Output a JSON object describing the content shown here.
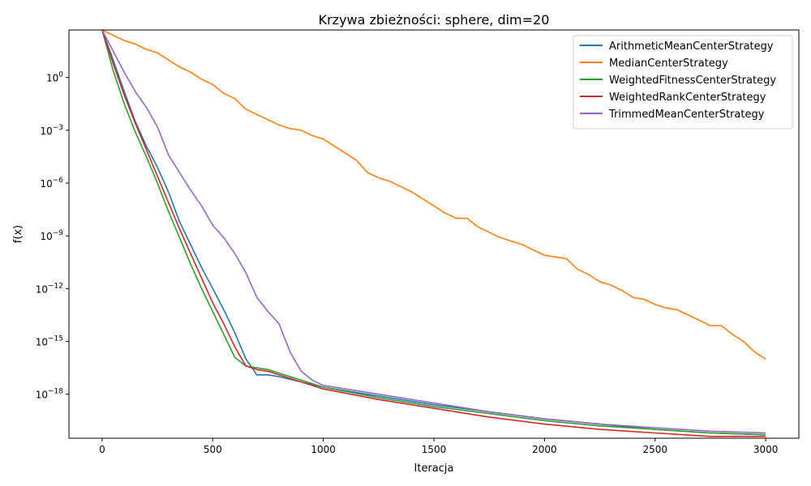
{
  "chart_data": {
    "type": "line",
    "title": "Krzywa zbieżności: sphere, dim=20",
    "xlabel": "Iteracja",
    "ylabel": "f(x)",
    "xlim": [
      -150,
      3150
    ],
    "xticks": [
      0,
      500,
      1000,
      1500,
      2000,
      2500,
      3000
    ],
    "yscale": "log",
    "ylim_log10": [
      -20.5,
      2.7
    ],
    "yticks": [
      {
        "exp": 0,
        "label": "10",
        "sup": "0"
      },
      {
        "exp": -3,
        "label": "10",
        "sup": "−3"
      },
      {
        "exp": -6,
        "label": "10",
        "sup": "−6"
      },
      {
        "exp": -9,
        "label": "10",
        "sup": "−9"
      },
      {
        "exp": -12,
        "label": "10",
        "sup": "−12"
      },
      {
        "exp": -15,
        "label": "10",
        "sup": "−15"
      },
      {
        "exp": -18,
        "label": "10",
        "sup": "−18"
      }
    ],
    "grid": false,
    "legend_position": "top-right",
    "series": [
      {
        "name": "ArithmeticMeanCenterStrategy",
        "color": "#1f77b4",
        "x": [
          0,
          50,
          100,
          150,
          200,
          250,
          300,
          350,
          400,
          450,
          500,
          550,
          600,
          650,
          700,
          750,
          800,
          900,
          1000,
          1250,
          1500,
          1750,
          2000,
          2250,
          2500,
          2750,
          3000
        ],
        "log10_y": [
          2.7,
          1.0,
          -0.8,
          -2.5,
          -3.9,
          -5.1,
          -6.5,
          -8.2,
          -9.5,
          -10.8,
          -12.0,
          -13.2,
          -14.5,
          -16.0,
          -16.9,
          -16.9,
          -17.0,
          -17.3,
          -17.6,
          -18.1,
          -18.6,
          -19.0,
          -19.4,
          -19.7,
          -20.0,
          -20.2,
          -20.3
        ]
      },
      {
        "name": "MedianCenterStrategy",
        "color": "#ff7f0e",
        "x": [
          0,
          50,
          100,
          150,
          200,
          250,
          300,
          350,
          400,
          450,
          500,
          550,
          600,
          650,
          700,
          750,
          800,
          850,
          900,
          950,
          1000,
          1050,
          1100,
          1150,
          1200,
          1250,
          1300,
          1350,
          1400,
          1450,
          1500,
          1550,
          1600,
          1650,
          1700,
          1750,
          1800,
          1850,
          1900,
          1950,
          2000,
          2050,
          2100,
          2150,
          2200,
          2250,
          2300,
          2350,
          2400,
          2450,
          2500,
          2550,
          2600,
          2650,
          2700,
          2750,
          2800,
          2850,
          2900,
          2950,
          3000
        ],
        "log10_y": [
          2.7,
          2.4,
          2.1,
          1.9,
          1.6,
          1.4,
          1.0,
          0.6,
          0.3,
          -0.1,
          -0.4,
          -0.9,
          -1.2,
          -1.8,
          -2.1,
          -2.4,
          -2.7,
          -2.9,
          -3.0,
          -3.3,
          -3.5,
          -3.9,
          -4.3,
          -4.7,
          -5.4,
          -5.7,
          -5.9,
          -6.2,
          -6.5,
          -6.9,
          -7.3,
          -7.7,
          -8.0,
          -8.0,
          -8.5,
          -8.8,
          -9.1,
          -9.3,
          -9.5,
          -9.8,
          -10.1,
          -10.2,
          -10.3,
          -10.9,
          -11.2,
          -11.6,
          -11.8,
          -12.1,
          -12.5,
          -12.6,
          -12.9,
          -13.1,
          -13.2,
          -13.5,
          -13.8,
          -14.1,
          -14.1,
          -14.6,
          -15.0,
          -15.6,
          -16.0
        ]
      },
      {
        "name": "WeightedFitnessCenterStrategy",
        "color": "#2ca02c",
        "x": [
          0,
          50,
          100,
          150,
          200,
          250,
          300,
          350,
          400,
          450,
          500,
          550,
          600,
          650,
          700,
          750,
          800,
          900,
          1000,
          1250,
          1500,
          1750,
          2000,
          2250,
          2500,
          2750,
          3000
        ],
        "log10_y": [
          2.7,
          0.4,
          -1.5,
          -3.1,
          -4.5,
          -6.0,
          -7.6,
          -9.1,
          -10.6,
          -12.0,
          -13.3,
          -14.6,
          -15.9,
          -16.4,
          -16.5,
          -16.6,
          -16.8,
          -17.2,
          -17.6,
          -18.2,
          -18.7,
          -19.1,
          -19.5,
          -19.8,
          -20.0,
          -20.2,
          -20.3
        ]
      },
      {
        "name": "WeightedRankCenterStrategy",
        "color": "#d62728",
        "x": [
          0,
          50,
          100,
          150,
          200,
          250,
          300,
          350,
          400,
          450,
          500,
          550,
          600,
          650,
          700,
          750,
          800,
          900,
          1000,
          1250,
          1500,
          1750,
          2000,
          2250,
          2500,
          2750,
          3000
        ],
        "log10_y": [
          2.7,
          0.8,
          -1.0,
          -2.6,
          -4.1,
          -5.6,
          -7.1,
          -8.6,
          -10.0,
          -11.4,
          -12.8,
          -14.0,
          -15.3,
          -16.4,
          -16.6,
          -16.7,
          -16.9,
          -17.3,
          -17.7,
          -18.3,
          -18.8,
          -19.3,
          -19.7,
          -20.0,
          -20.2,
          -20.4,
          -20.4
        ]
      },
      {
        "name": "TrimmedMeanCenterStrategy",
        "color": "#9467bd",
        "x": [
          0,
          50,
          100,
          150,
          200,
          250,
          300,
          350,
          400,
          450,
          500,
          550,
          600,
          650,
          700,
          750,
          800,
          850,
          900,
          950,
          1000,
          1250,
          1500,
          1750,
          2000,
          2250,
          2500,
          2750,
          3000
        ],
        "log10_y": [
          2.7,
          1.5,
          0.3,
          -0.8,
          -1.7,
          -2.8,
          -4.4,
          -5.4,
          -6.4,
          -7.3,
          -8.4,
          -9.1,
          -10.0,
          -11.1,
          -12.5,
          -13.3,
          -14.0,
          -15.6,
          -16.7,
          -17.2,
          -17.5,
          -18.0,
          -18.5,
          -19.0,
          -19.4,
          -19.7,
          -19.9,
          -20.1,
          -20.2
        ]
      }
    ]
  }
}
